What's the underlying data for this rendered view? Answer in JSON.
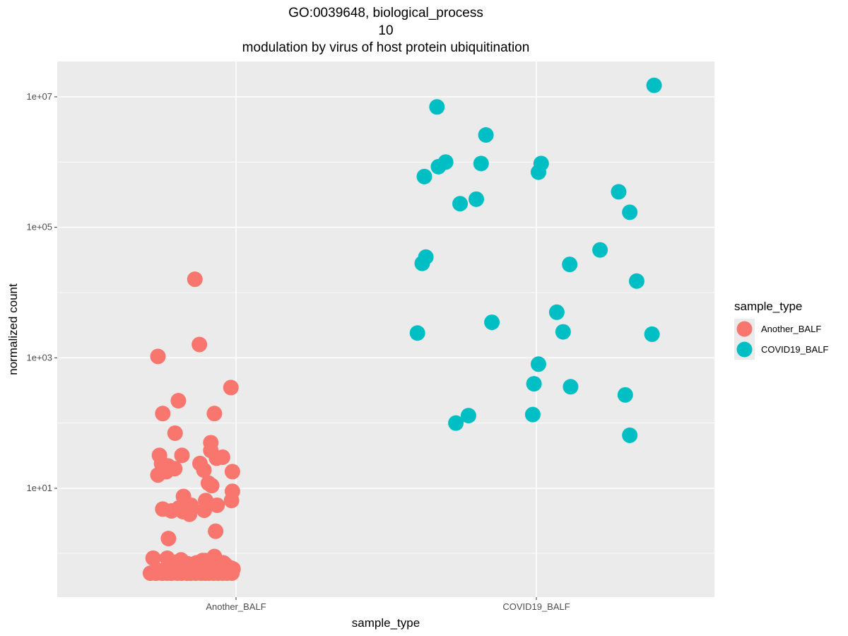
{
  "chart_data": {
    "type": "scatter",
    "title_lines": [
      "GO:0039648, biological_process",
      "10",
      "modulation by virus of host protein ubiquitination"
    ],
    "xlabel": "sample_type",
    "ylabel": "normalized count",
    "y_scale": "log10",
    "categories": [
      "Another_BALF",
      "COVID19_BALF"
    ],
    "y_ticks": [
      {
        "value": 10,
        "label": "1e+01"
      },
      {
        "value": 1000,
        "label": "1e+03"
      },
      {
        "value": 100000,
        "label": "1e+05"
      },
      {
        "value": 10000000,
        "label": "1e+07"
      }
    ],
    "ylim": [
      0.3,
      30000000
    ],
    "grid": true,
    "legend": {
      "title": "sample_type",
      "placement": "right",
      "items": [
        {
          "label": "Another_BALF",
          "color": "#F8766D"
        },
        {
          "label": "COVID19_BALF",
          "color": "#00BFC4"
        }
      ]
    },
    "series": [
      {
        "category": "Another_BALF",
        "color": "#F8766D",
        "points": [
          {
            "x": 0.863,
            "y": 16000
          },
          {
            "x": 0.878,
            "y": 1600
          },
          {
            "x": 0.74,
            "y": 1050
          },
          {
            "x": 0.808,
            "y": 220
          },
          {
            "x": 0.756,
            "y": 140
          },
          {
            "x": 0.983,
            "y": 350
          },
          {
            "x": 0.797,
            "y": 70
          },
          {
            "x": 0.916,
            "y": 50
          },
          {
            "x": 0.916,
            "y": 38
          },
          {
            "x": 0.928,
            "y": 140
          },
          {
            "x": 0.745,
            "y": 32
          },
          {
            "x": 0.82,
            "y": 32
          },
          {
            "x": 0.955,
            "y": 30
          },
          {
            "x": 0.935,
            "y": 29
          },
          {
            "x": 0.752,
            "y": 24
          },
          {
            "x": 0.764,
            "y": 22
          },
          {
            "x": 0.774,
            "y": 22
          },
          {
            "x": 0.88,
            "y": 24
          },
          {
            "x": 0.796,
            "y": 20
          },
          {
            "x": 0.768,
            "y": 18
          },
          {
            "x": 0.74,
            "y": 16
          },
          {
            "x": 0.893,
            "y": 19
          },
          {
            "x": 0.988,
            "y": 18
          },
          {
            "x": 0.908,
            "y": 12
          },
          {
            "x": 0.919,
            "y": 11
          },
          {
            "x": 0.988,
            "y": 9
          },
          {
            "x": 0.985,
            "y": 6.5
          },
          {
            "x": 0.825,
            "y": 7.5
          },
          {
            "x": 0.899,
            "y": 6.5
          },
          {
            "x": 0.937,
            "y": 5.5
          },
          {
            "x": 0.85,
            "y": 5.5
          },
          {
            "x": 0.81,
            "y": 5
          },
          {
            "x": 0.756,
            "y": 4.8
          },
          {
            "x": 0.785,
            "y": 4.5
          },
          {
            "x": 0.823,
            "y": 4.4
          },
          {
            "x": 0.894,
            "y": 4.6
          },
          {
            "x": 0.845,
            "y": 4
          },
          {
            "x": 0.932,
            "y": 2.2
          },
          {
            "x": 0.775,
            "y": 1.7
          },
          {
            "x": 0.724,
            "y": 0.85
          },
          {
            "x": 0.771,
            "y": 0.85
          },
          {
            "x": 0.817,
            "y": 0.8
          },
          {
            "x": 0.928,
            "y": 0.9
          },
          {
            "x": 0.807,
            "y": 0.75
          },
          {
            "x": 0.83,
            "y": 0.68
          },
          {
            "x": 0.838,
            "y": 0.7
          },
          {
            "x": 0.868,
            "y": 0.72
          },
          {
            "x": 0.888,
            "y": 0.78
          },
          {
            "x": 0.897,
            "y": 0.78
          },
          {
            "x": 0.944,
            "y": 0.72
          },
          {
            "x": 0.958,
            "y": 0.72
          },
          {
            "x": 0.964,
            "y": 0.68
          },
          {
            "x": 0.99,
            "y": 0.58
          },
          {
            "x": 0.983,
            "y": 0.6
          },
          {
            "x": 0.775,
            "y": 0.6
          },
          {
            "x": 0.819,
            "y": 0.6
          },
          {
            "x": 0.862,
            "y": 0.6
          },
          {
            "x": 0.869,
            "y": 0.6
          },
          {
            "x": 0.951,
            "y": 0.6
          },
          {
            "x": 0.715,
            "y": 0.5
          },
          {
            "x": 0.733,
            "y": 0.5
          },
          {
            "x": 0.754,
            "y": 0.5
          },
          {
            "x": 0.77,
            "y": 0.5
          },
          {
            "x": 0.785,
            "y": 0.5
          },
          {
            "x": 0.805,
            "y": 0.5
          },
          {
            "x": 0.818,
            "y": 0.5
          },
          {
            "x": 0.837,
            "y": 0.5
          },
          {
            "x": 0.849,
            "y": 0.5
          },
          {
            "x": 0.866,
            "y": 0.5
          },
          {
            "x": 0.884,
            "y": 0.5
          },
          {
            "x": 0.898,
            "y": 0.5
          },
          {
            "x": 0.91,
            "y": 0.5
          },
          {
            "x": 0.925,
            "y": 0.5
          },
          {
            "x": 0.94,
            "y": 0.5
          },
          {
            "x": 0.955,
            "y": 0.5
          },
          {
            "x": 0.969,
            "y": 0.5
          },
          {
            "x": 0.986,
            "y": 0.5
          },
          {
            "x": 0.878,
            "y": 0.55
          },
          {
            "x": 0.914,
            "y": 0.55
          },
          {
            "x": 0.742,
            "y": 0.55
          }
        ]
      },
      {
        "category": "COVID19_BALF",
        "color": "#00BFC4",
        "points": [
          {
            "x": 2.392,
            "y": 15000000
          },
          {
            "x": 1.669,
            "y": 7000000
          },
          {
            "x": 1.832,
            "y": 2600000
          },
          {
            "x": 1.698,
            "y": 1000000
          },
          {
            "x": 1.674,
            "y": 850000
          },
          {
            "x": 1.816,
            "y": 950000
          },
          {
            "x": 2.016,
            "y": 950000
          },
          {
            "x": 2.007,
            "y": 700000
          },
          {
            "x": 1.627,
            "y": 600000
          },
          {
            "x": 1.746,
            "y": 230000
          },
          {
            "x": 1.8,
            "y": 270000
          },
          {
            "x": 2.274,
            "y": 350000
          },
          {
            "x": 2.311,
            "y": 170000
          },
          {
            "x": 2.212,
            "y": 45000
          },
          {
            "x": 1.632,
            "y": 35000
          },
          {
            "x": 1.62,
            "y": 28000
          },
          {
            "x": 2.111,
            "y": 27000
          },
          {
            "x": 2.334,
            "y": 15000
          },
          {
            "x": 2.068,
            "y": 5000
          },
          {
            "x": 1.852,
            "y": 3500
          },
          {
            "x": 2.089,
            "y": 2500
          },
          {
            "x": 1.604,
            "y": 2400
          },
          {
            "x": 2.385,
            "y": 2300
          },
          {
            "x": 2.007,
            "y": 800
          },
          {
            "x": 1.992,
            "y": 400
          },
          {
            "x": 2.114,
            "y": 360
          },
          {
            "x": 2.296,
            "y": 270
          },
          {
            "x": 1.774,
            "y": 130
          },
          {
            "x": 1.988,
            "y": 135
          },
          {
            "x": 1.732,
            "y": 100
          },
          {
            "x": 2.311,
            "y": 65
          }
        ]
      }
    ]
  }
}
